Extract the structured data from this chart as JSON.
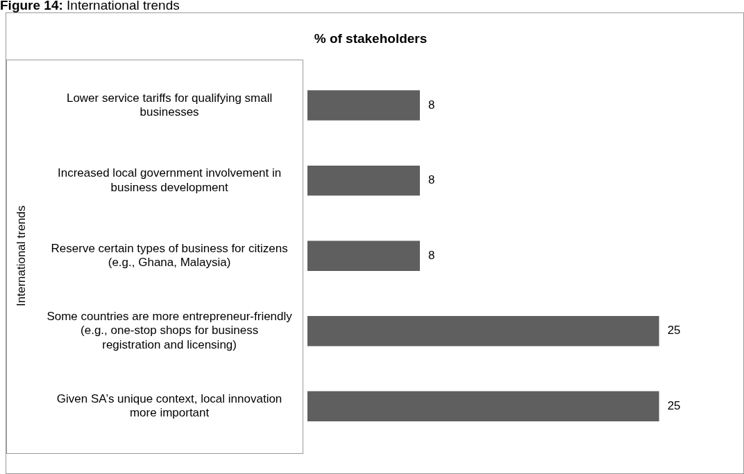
{
  "chart_data": {
    "type": "bar",
    "orientation": "horizontal",
    "title": "% of stakeholders",
    "ylabel": "International trends",
    "categories": [
      "Lower service tariffs for qualifying small businesses",
      "Increased local government involvement in business development",
      "Reserve certain types of business for citizens (e.g., Ghana, Malaysia)",
      "Some countries are more entrepreneur-friendly (e.g., one-stop shops for business registration and licensing)",
      "Given SA’s unique context, local innovation more important"
    ],
    "values": [
      8,
      8,
      8,
      25,
      25
    ],
    "color": "#5f5f5f",
    "data_labels": true,
    "legend": false,
    "annotations": [
      "Figure 14: International trends"
    ]
  }
}
